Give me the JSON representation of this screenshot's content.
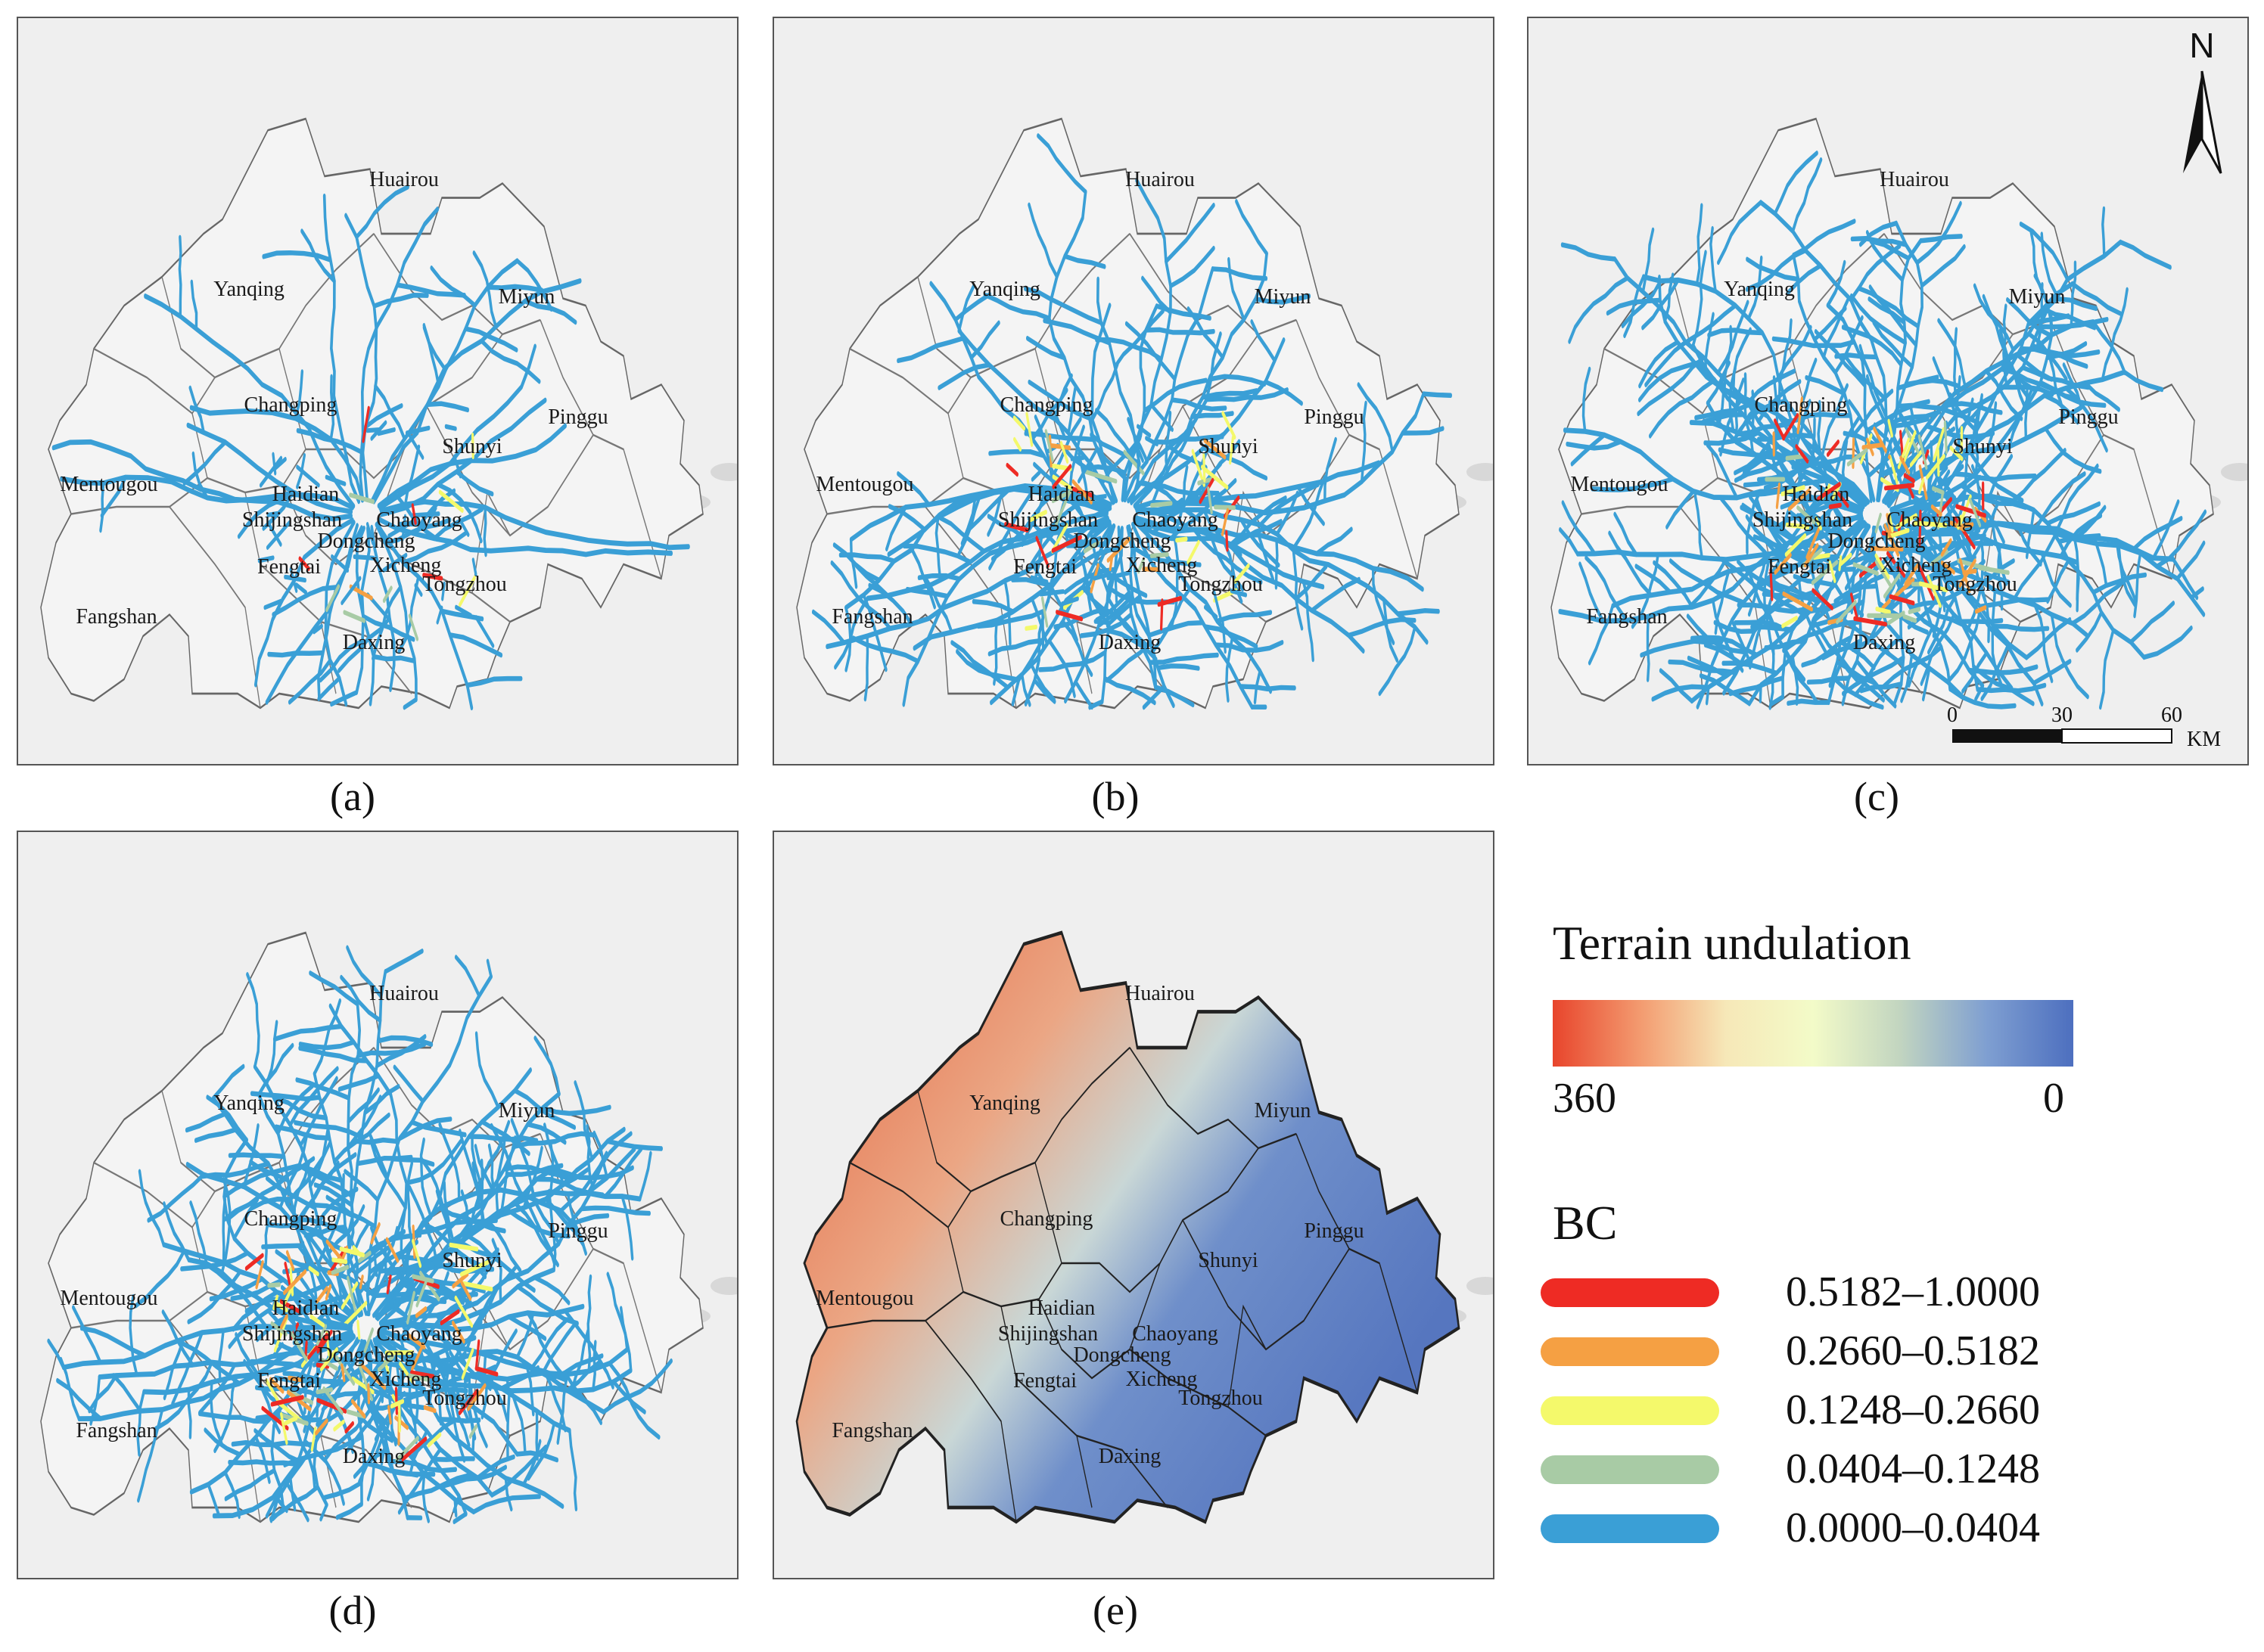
{
  "panels": [
    {
      "id": "a",
      "caption": "(a)",
      "density": 1
    },
    {
      "id": "b",
      "caption": "(b)",
      "density": 2
    },
    {
      "id": "c",
      "caption": "(c)",
      "density": 3
    },
    {
      "id": "d",
      "caption": "(d)",
      "density": 3
    },
    {
      "id": "e",
      "caption": "(e)",
      "density": 0
    }
  ],
  "districts": [
    "Huairou",
    "Yanqing",
    "Miyun",
    "Changping",
    "Pinggu",
    "Shunyi",
    "Mentougou",
    "Haidian",
    "Shijingshan",
    "Chaoyang",
    "Dongcheng",
    "Fengtai",
    "Xicheng",
    "Tongzhou",
    "Fangshan",
    "Daxing"
  ],
  "north_arrow": {
    "label": "N"
  },
  "scale_bar": {
    "ticks": [
      "0",
      "30",
      "60"
    ],
    "unit": "KM"
  },
  "terrain_legend": {
    "title": "Terrain undulation",
    "min_label": "0",
    "max_label": "360",
    "colors": [
      "#e8452c",
      "#f39a6f",
      "#f6e8b8",
      "#f3fbc8",
      "#c2d5c0",
      "#7f9fd1",
      "#4d6fbf"
    ]
  },
  "bc_legend": {
    "title": "BC",
    "classes": [
      {
        "range": "0.5182–1.0000",
        "color": "#ee2b24"
      },
      {
        "range": "0.2660–0.5182",
        "color": "#f5a043"
      },
      {
        "range": "0.1248–0.2660",
        "color": "#f4f96b"
      },
      {
        "range": "0.0404–0.1248",
        "color": "#a8cba5"
      },
      {
        "range": "0.0000–0.0404",
        "color": "#3a9fd6"
      }
    ]
  }
}
